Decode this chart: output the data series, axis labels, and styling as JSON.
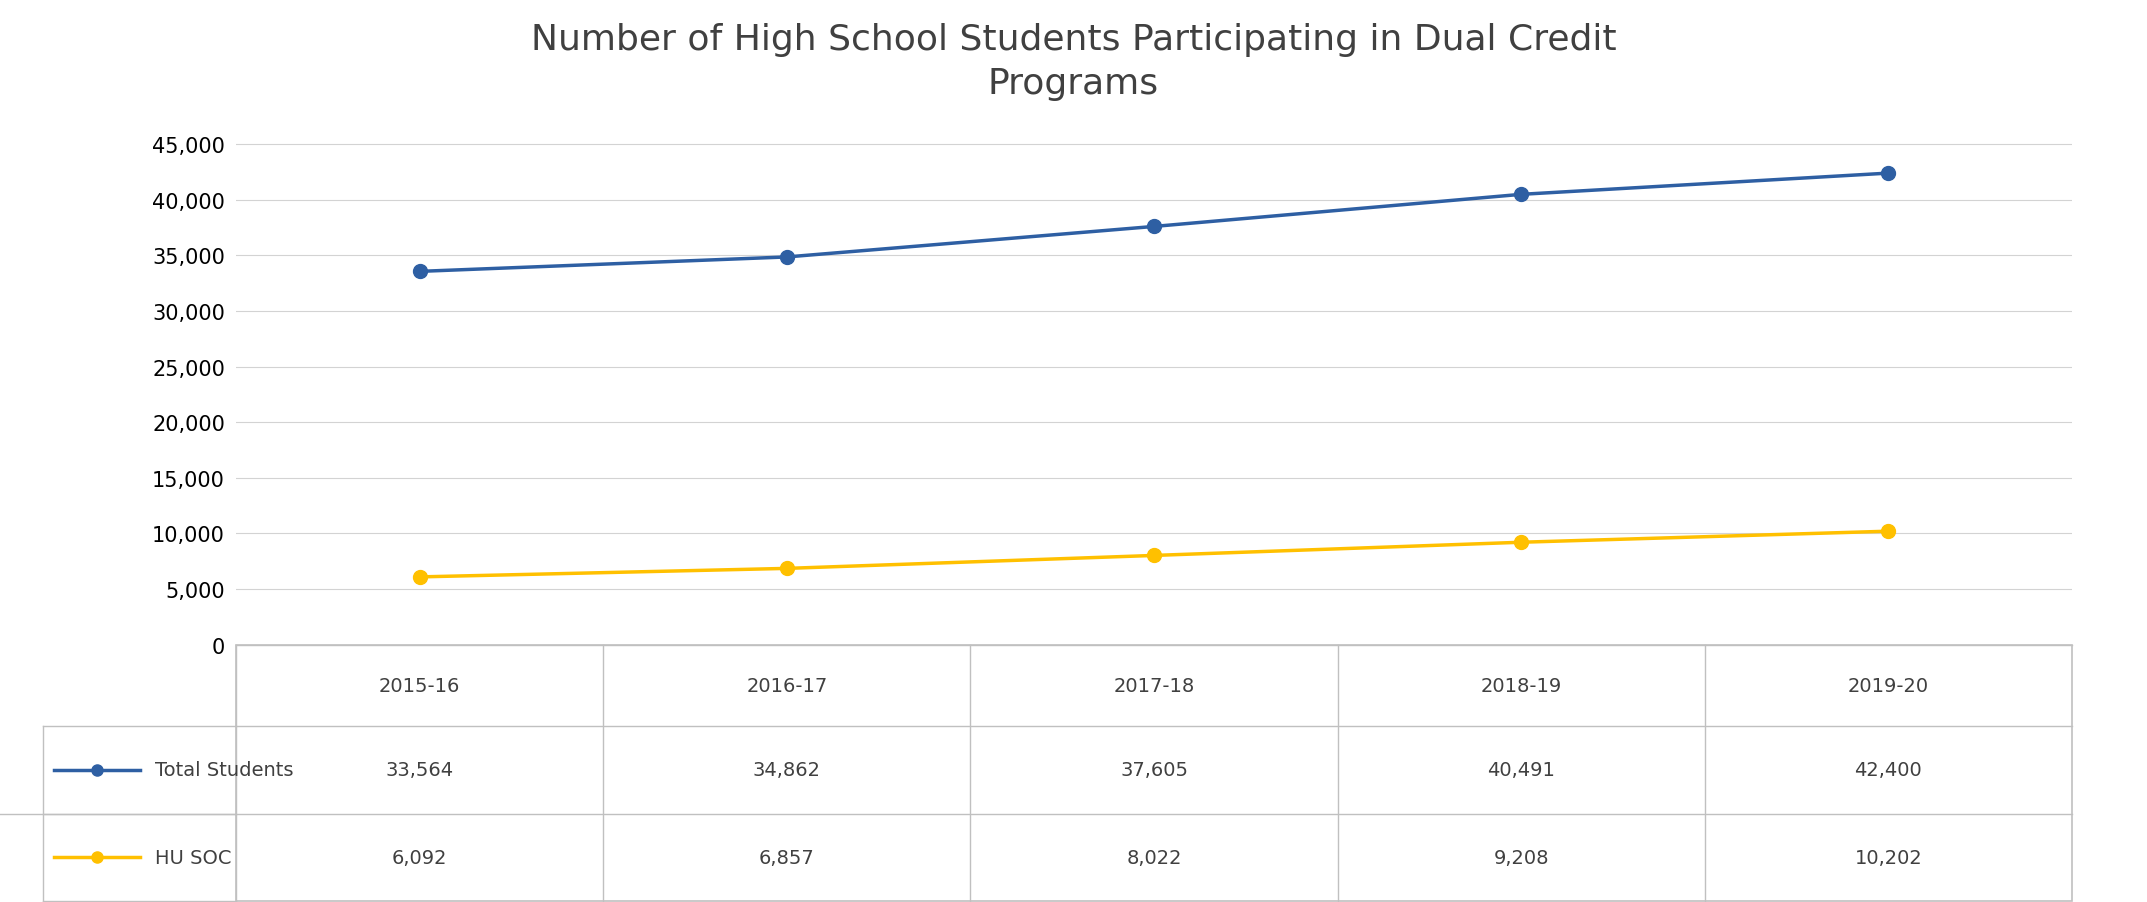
{
  "title": "Number of High School Students Participating in Dual Credit\nPrograms",
  "categories": [
    "2015-16",
    "2016-17",
    "2017-18",
    "2018-19",
    "2019-20"
  ],
  "total_students": [
    33564,
    34862,
    37605,
    40491,
    42400
  ],
  "hu_soc": [
    6092,
    6857,
    8022,
    9208,
    10202
  ],
  "total_color": "#2E5FA3",
  "hu_soc_color": "#FFC000",
  "background_color": "#FFFFFF",
  "ylim": [
    0,
    47500
  ],
  "yticks": [
    0,
    5000,
    10000,
    15000,
    20000,
    25000,
    30000,
    35000,
    40000,
    45000
  ],
  "title_fontsize": 26,
  "tick_fontsize": 15,
  "table_fontsize": 14,
  "line_width": 2.5,
  "marker_size": 10,
  "total_label": "Total Students",
  "hu_soc_label": "HU SOC",
  "grid_color": "#D3D3D3",
  "border_color": "#C0C0C0"
}
